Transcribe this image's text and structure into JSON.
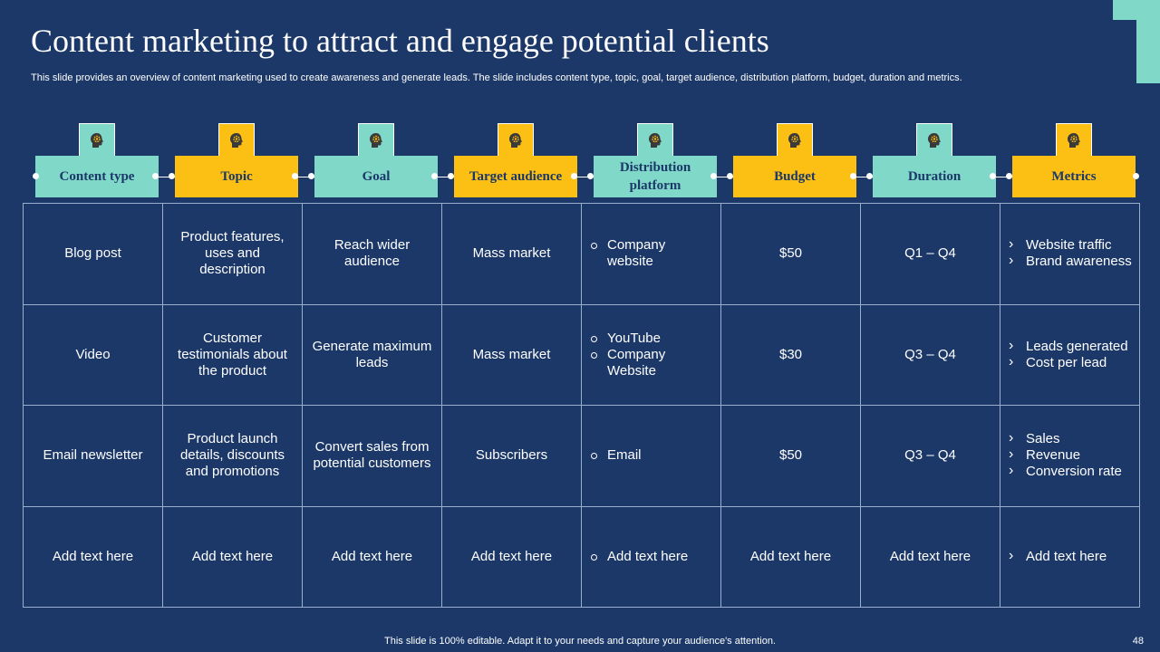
{
  "slide": {
    "title": "Content marketing to attract and engage potential clients",
    "subtitle": "This slide provides an overview of content marketing used to create awareness and generate leads. The slide includes content type, topic, goal, target audience, distribution platform, budget, duration and metrics.",
    "footer": "This slide is 100% editable. Adapt it to your needs and capture your audience's attention.",
    "page_number": "48"
  },
  "colors": {
    "background": "#1c3869",
    "teal": "#7fd8c8",
    "gold": "#fcbf14"
  },
  "columns": [
    {
      "label": "Content type",
      "color": "teal",
      "icon": "head-gear-icon"
    },
    {
      "label": "Topic",
      "color": "gold",
      "icon": "head-gear-icon"
    },
    {
      "label": "Goal",
      "color": "teal",
      "icon": "head-gear-icon"
    },
    {
      "label": "Target audience",
      "color": "gold",
      "icon": "head-gear-icon"
    },
    {
      "label": "Distribution platform",
      "color": "teal",
      "icon": "head-gear-icon"
    },
    {
      "label": "Budget",
      "color": "gold",
      "icon": "head-gear-icon"
    },
    {
      "label": "Duration",
      "color": "teal",
      "icon": "head-gear-icon"
    },
    {
      "label": "Metrics",
      "color": "gold",
      "icon": "head-gear-icon"
    }
  ],
  "rows": [
    {
      "content_type": "Blog post",
      "topic": "Product features, uses and description",
      "goal": "Reach wider audience",
      "target_audience": "Mass market",
      "distribution_platform": [
        "Company website"
      ],
      "budget": "$50",
      "duration": "Q1 – Q4",
      "metrics": [
        "Website traffic",
        "Brand awareness"
      ]
    },
    {
      "content_type": "Video",
      "topic": "Customer testimonials about the product",
      "goal": "Generate maximum leads",
      "target_audience": "Mass market",
      "distribution_platform": [
        "YouTube",
        "Company Website"
      ],
      "budget": "$30",
      "duration": "Q3 – Q4",
      "metrics": [
        "Leads generated",
        "Cost per lead"
      ]
    },
    {
      "content_type": "Email newsletter",
      "topic": "Product launch details, discounts and promotions",
      "goal": "Convert sales from potential customers",
      "target_audience": "Subscribers",
      "distribution_platform": [
        "Email"
      ],
      "budget": "$50",
      "duration": "Q3 – Q4",
      "metrics": [
        "Sales",
        "Revenue",
        "Conversion rate"
      ]
    },
    {
      "content_type": "Add text here",
      "topic": "Add text here",
      "goal": "Add text here",
      "target_audience": "Add text here",
      "distribution_platform": [
        "Add text here"
      ],
      "budget": "Add text here",
      "duration": "Add text here",
      "metrics": [
        "Add text here"
      ]
    }
  ]
}
